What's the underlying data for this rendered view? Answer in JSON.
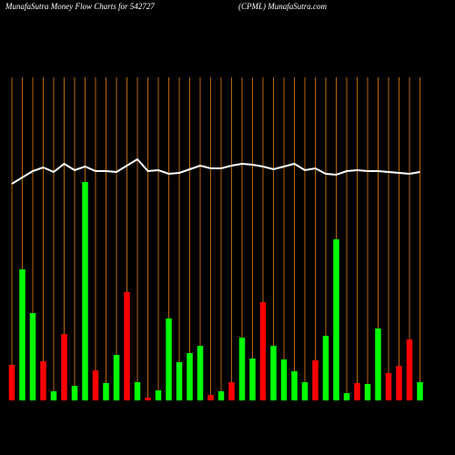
{
  "chart_data": {
    "type": "bar",
    "title": "MunafaSutra  Money Flow  Charts for 542727",
    "subtitle": "(CPML) MunafaSutra.com",
    "categories": [
      null,
      null,
      null,
      null,
      null,
      null,
      null,
      null,
      null,
      null,
      null,
      null,
      null,
      null,
      null,
      null,
      null,
      null,
      null,
      null,
      null,
      null,
      null,
      null,
      null,
      null,
      null,
      null,
      null,
      null,
      null,
      null,
      null,
      null,
      null,
      null,
      null,
      null,
      null,
      null
    ],
    "values": [
      39,
      144,
      96,
      43,
      10,
      73,
      16,
      240,
      33,
      19,
      50,
      119,
      20,
      3,
      11,
      90,
      42,
      52,
      60,
      6,
      10,
      20,
      69,
      46,
      108,
      60,
      45,
      32,
      20,
      44,
      71,
      177,
      8,
      19,
      18,
      79,
      30,
      38,
      67,
      20
    ],
    "colors": [
      "#ff0000",
      "#00ff00",
      "#00ff00",
      "#ff0000",
      "#00ff00",
      "#ff0000",
      "#00ff00",
      "#00ff00",
      "#ff0000",
      "#00ff00",
      "#00ff00",
      "#ff0000",
      "#00ff00",
      "#ff0000",
      "#00ff00",
      "#00ff00",
      "#00ff00",
      "#00ff00",
      "#00ff00",
      "#ff0000",
      "#00ff00",
      "#ff0000",
      "#00ff00",
      "#00ff00",
      "#ff0000",
      "#00ff00",
      "#00ff00",
      "#00ff00",
      "#00ff00",
      "#ff0000",
      "#00ff00",
      "#00ff00",
      "#00ff00",
      "#ff0000",
      "#00ff00",
      "#00ff00",
      "#ff0000",
      "#ff0000",
      "#ff0000",
      "#00ff00"
    ],
    "line": {
      "color": "#ffffff",
      "values": [
        238,
        245,
        252,
        256,
        251,
        260,
        253,
        257,
        252,
        252,
        251,
        258,
        265,
        252,
        253,
        249,
        250,
        254,
        258,
        255,
        255,
        258,
        260,
        259,
        257,
        254,
        257,
        260,
        253,
        255,
        249,
        248,
        252,
        253,
        252,
        252,
        251,
        250,
        249,
        251
      ]
    },
    "gridline_color": "#b8650a"
  }
}
